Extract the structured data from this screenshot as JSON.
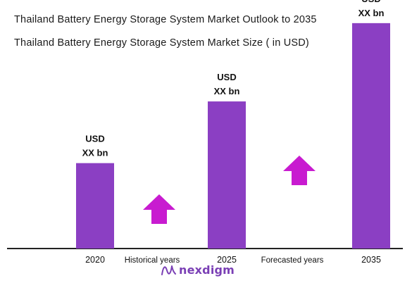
{
  "header": {
    "title": "Thailand Battery Energy Storage System Market Outlook to 2035",
    "subtitle": "Thailand Battery Energy Storage System Market Size ( in USD)"
  },
  "chart_data": {
    "type": "bar",
    "categories": [
      "2020",
      "2025",
      "2035"
    ],
    "values": [
      0.36,
      0.62,
      0.95
    ],
    "value_labels": [
      {
        "line1": "USD",
        "line2": "XX bn"
      },
      {
        "line1": "USD",
        "line2": "XX bn"
      },
      {
        "line1": "USD",
        "line2": "XX bn"
      }
    ],
    "period_labels": [
      "Historical years",
      "Forecasted years"
    ],
    "ylim": [
      0,
      1
    ],
    "grid": false,
    "bar_color": "#8b3fc3",
    "arrow_color": "#c81bd0"
  },
  "logo": {
    "text": "nexdigm",
    "color": "#7a3fb5"
  }
}
